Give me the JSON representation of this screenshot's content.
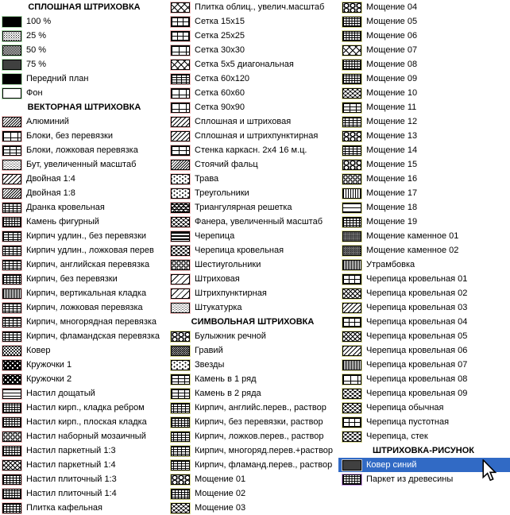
{
  "selection_color": "#316ac5",
  "category_colors": {
    "solid": "#b3e2b3",
    "vector": "#f6c0c0",
    "symbol": "#dede9a",
    "picture": "#cf9ef0"
  },
  "sections": {
    "solid": "СПЛОШНАЯ ШТРИХОВКА",
    "vector": "ВЕКТОРНАЯ ШТРИХОВКА",
    "symbol": "СИМВОЛЬНАЯ ШТРИХОВКА",
    "picture": "ШТРИХОВКА-РИСУНОК"
  },
  "selected_item": "Ковер синий",
  "columns": [
    {
      "rows": [
        {
          "type": "header",
          "label": "СПЛОШНАЯ ШТРИХОВКА"
        },
        {
          "type": "item",
          "label": "100 %",
          "pattern": "black",
          "category": "solid"
        },
        {
          "type": "item",
          "label": "25 %",
          "pattern": "stip25",
          "category": "solid"
        },
        {
          "type": "item",
          "label": "50 %",
          "pattern": "checker",
          "category": "solid"
        },
        {
          "type": "item",
          "label": "75 %",
          "pattern": "stip75",
          "category": "solid"
        },
        {
          "type": "item",
          "label": "Передний план",
          "pattern": "black",
          "category": "solid"
        },
        {
          "type": "item",
          "label": "Фон",
          "pattern": "white",
          "category": "solid"
        },
        {
          "type": "header",
          "label": "ВЕКТОРНАЯ ШТРИХОВКА"
        },
        {
          "type": "item",
          "label": "Алюминий",
          "pattern": "diag8",
          "category": "vector"
        },
        {
          "type": "item",
          "label": "Блоки, без перевязки",
          "pattern": "gridl",
          "category": "vector"
        },
        {
          "type": "item",
          "label": "Блоки, ложковая перевязка",
          "pattern": "brick",
          "category": "vector"
        },
        {
          "type": "item",
          "label": "Бут, увеличенный масштаб",
          "pattern": "speck",
          "category": "vector"
        },
        {
          "type": "item",
          "label": "Двойная 1:4",
          "pattern": "diag",
          "category": "vector"
        },
        {
          "type": "item",
          "label": "Двойная 1:8",
          "pattern": "diag8",
          "category": "vector"
        },
        {
          "type": "item",
          "label": "Дранка кровельная",
          "pattern": "brickd",
          "category": "vector"
        },
        {
          "type": "item",
          "label": "Камень фигурный",
          "pattern": "maze",
          "category": "vector"
        },
        {
          "type": "item",
          "label": "Кирпич удлин., без перевязки",
          "pattern": "gridr",
          "category": "vector"
        },
        {
          "type": "item",
          "label": "Кирпич удлин., ложковая перев",
          "pattern": "brickd",
          "category": "vector"
        },
        {
          "type": "item",
          "label": "Кирпич, английская перевязка",
          "pattern": "brickd",
          "category": "vector"
        },
        {
          "type": "item",
          "label": "Кирпич, без перевязки",
          "pattern": "gridd",
          "category": "vector"
        },
        {
          "type": "item",
          "label": "Кирпич, вертикальная кладка",
          "pattern": "vlined",
          "category": "vector"
        },
        {
          "type": "item",
          "label": "Кирпич, ложковая перевязка",
          "pattern": "brickd",
          "category": "vector"
        },
        {
          "type": "item",
          "label": "Кирпич, многорядная перевязка",
          "pattern": "brickd",
          "category": "vector"
        },
        {
          "type": "item",
          "label": "Кирпич, фламандская перевязка",
          "pattern": "brickd",
          "category": "vector"
        },
        {
          "type": "item",
          "label": "Ковер",
          "pattern": "dots",
          "category": "vector"
        },
        {
          "type": "item",
          "label": "Кружочки 1",
          "pattern": "circ",
          "category": "vector"
        },
        {
          "type": "item",
          "label": "Кружочки 2",
          "pattern": "circ",
          "category": "vector"
        },
        {
          "type": "item",
          "label": "Настил дощатый",
          "pattern": "hline",
          "category": "vector"
        },
        {
          "type": "item",
          "label": "Настил кирп., кладка ребром",
          "pattern": "maze",
          "category": "vector"
        },
        {
          "type": "item",
          "label": "Настил кирп., плоская кладка",
          "pattern": "maze",
          "category": "vector"
        },
        {
          "type": "item",
          "label": "Настил наборный мозаичный",
          "pattern": "circo",
          "category": "vector"
        },
        {
          "type": "item",
          "label": "Настил паркетный 1:3",
          "pattern": "maze",
          "category": "vector"
        },
        {
          "type": "item",
          "label": "Настил паркетный 1:4",
          "pattern": "cross",
          "category": "vector"
        },
        {
          "type": "item",
          "label": "Настил плиточный 1:3",
          "pattern": "gridd",
          "category": "vector"
        },
        {
          "type": "item",
          "label": "Настил плиточный 1:4",
          "pattern": "maze",
          "category": "vector"
        },
        {
          "type": "item",
          "label": "Плитка кафельная",
          "pattern": "gridd",
          "category": "vector"
        }
      ]
    },
    {
      "rows": [
        {
          "type": "item",
          "label": "Плитка облиц., увелич.масштаб",
          "pattern": "crossl",
          "category": "vector"
        },
        {
          "type": "item",
          "label": "Сетка 15x15",
          "pattern": "grid",
          "category": "vector"
        },
        {
          "type": "item",
          "label": "Сетка 25x25",
          "pattern": "grid",
          "category": "vector"
        },
        {
          "type": "item",
          "label": "Сетка 30x30",
          "pattern": "gridl",
          "category": "vector"
        },
        {
          "type": "item",
          "label": "Сетка 5x5 диагональная",
          "pattern": "crossl",
          "category": "vector"
        },
        {
          "type": "item",
          "label": "Сетка 60x120",
          "pattern": "gridr",
          "category": "vector"
        },
        {
          "type": "item",
          "label": "Сетка 60x60",
          "pattern": "gridl",
          "category": "vector"
        },
        {
          "type": "item",
          "label": "Сетка 90x90",
          "pattern": "gridl",
          "category": "vector"
        },
        {
          "type": "item",
          "label": "Сплошная и штриховая",
          "pattern": "diag",
          "category": "vector"
        },
        {
          "type": "item",
          "label": "Сплошная и штрихпунктирная",
          "pattern": "diag",
          "category": "vector"
        },
        {
          "type": "item",
          "label": "Стенка каркасн. 2x4 16 м.ц.",
          "pattern": "stud",
          "category": "vector"
        },
        {
          "type": "item",
          "label": "Стоячий фальц",
          "pattern": "diag8",
          "category": "vector"
        },
        {
          "type": "item",
          "label": "Трава",
          "pattern": "scatter",
          "category": "vector"
        },
        {
          "type": "item",
          "label": "Треугольники",
          "pattern": "scatter",
          "category": "vector"
        },
        {
          "type": "item",
          "label": "Триангулярная решетка",
          "pattern": "tri",
          "category": "vector"
        },
        {
          "type": "item",
          "label": "Фанера, увеличенный масштаб",
          "pattern": "scale",
          "category": "vector"
        },
        {
          "type": "item",
          "label": "Черепица",
          "pattern": "hbar",
          "category": "vector"
        },
        {
          "type": "item",
          "label": "Черепица кровельная",
          "pattern": "scale",
          "category": "vector"
        },
        {
          "type": "item",
          "label": "Шестиугольники",
          "pattern": "circo",
          "category": "vector"
        },
        {
          "type": "item",
          "label": "Штриховая",
          "pattern": "diagl",
          "category": "vector"
        },
        {
          "type": "item",
          "label": "Штрихпунктирная",
          "pattern": "diagl",
          "category": "vector"
        },
        {
          "type": "item",
          "label": "Штукатурка",
          "pattern": "speck",
          "category": "vector"
        },
        {
          "type": "header",
          "label": "СИМВОЛЬНАЯ ШТРИХОВКА"
        },
        {
          "type": "item",
          "label": "Булыжник речной",
          "pattern": "cobble",
          "category": "symbol"
        },
        {
          "type": "item",
          "label": "Гравий",
          "pattern": "speckd",
          "category": "symbol"
        },
        {
          "type": "item",
          "label": "Звезды",
          "pattern": "scatter",
          "category": "symbol"
        },
        {
          "type": "item",
          "label": "Камень в 1 ряд",
          "pattern": "brick",
          "category": "symbol"
        },
        {
          "type": "item",
          "label": "Камень в 2 ряда",
          "pattern": "brick",
          "category": "symbol"
        },
        {
          "type": "item",
          "label": "Кирпич, английс.перев., раствор",
          "pattern": "brickd",
          "category": "symbol"
        },
        {
          "type": "item",
          "label": "Кирпич, без перевязки, раствор",
          "pattern": "gridd",
          "category": "symbol"
        },
        {
          "type": "item",
          "label": "Кирпич, ложков.перев., раствор",
          "pattern": "brickd",
          "category": "symbol"
        },
        {
          "type": "item",
          "label": "Кирпич, многоряд.перев.+раствор",
          "pattern": "brickd",
          "category": "symbol"
        },
        {
          "type": "item",
          "label": "Кирпич, фламанд.перев., раствор",
          "pattern": "brickd",
          "category": "symbol"
        },
        {
          "type": "item",
          "label": "Мощение 01",
          "pattern": "cobble",
          "category": "symbol"
        },
        {
          "type": "item",
          "label": "Мощение 02",
          "pattern": "gridd",
          "category": "symbol"
        },
        {
          "type": "item",
          "label": "Мощение 03",
          "pattern": "scale",
          "category": "symbol"
        }
      ]
    },
    {
      "rows": [
        {
          "type": "item",
          "label": "Мощение 04",
          "pattern": "cobble",
          "category": "symbol"
        },
        {
          "type": "item",
          "label": "Мощение 05",
          "pattern": "maze",
          "category": "symbol"
        },
        {
          "type": "item",
          "label": "Мощение 06",
          "pattern": "maze",
          "category": "symbol"
        },
        {
          "type": "item",
          "label": "Мощение 07",
          "pattern": "crossl",
          "category": "symbol"
        },
        {
          "type": "item",
          "label": "Мощение 08",
          "pattern": "maze",
          "category": "symbol"
        },
        {
          "type": "item",
          "label": "Мощение 09",
          "pattern": "maze",
          "category": "symbol"
        },
        {
          "type": "item",
          "label": "Мощение 10",
          "pattern": "scale",
          "category": "symbol"
        },
        {
          "type": "item",
          "label": "Мощение 11",
          "pattern": "brick",
          "category": "symbol"
        },
        {
          "type": "item",
          "label": "Мощение 12",
          "pattern": "brickd",
          "category": "symbol"
        },
        {
          "type": "item",
          "label": "Мощение 13",
          "pattern": "cobble",
          "category": "symbol"
        },
        {
          "type": "item",
          "label": "Мощение 14",
          "pattern": "brickd",
          "category": "symbol"
        },
        {
          "type": "item",
          "label": "Мощение 15",
          "pattern": "cobble",
          "category": "symbol"
        },
        {
          "type": "item",
          "label": "Мощение 16",
          "pattern": "circo",
          "category": "symbol"
        },
        {
          "type": "item",
          "label": "Мощение 17",
          "pattern": "vline",
          "category": "symbol"
        },
        {
          "type": "item",
          "label": "Мощение 18",
          "pattern": "hlinel",
          "category": "symbol"
        },
        {
          "type": "item",
          "label": "Мощение 19",
          "pattern": "gridd",
          "category": "symbol"
        },
        {
          "type": "item",
          "label": "Мощение каменное 01",
          "pattern": "speckd",
          "category": "symbol"
        },
        {
          "type": "item",
          "label": "Мощение каменное 02",
          "pattern": "speckd",
          "category": "symbol"
        },
        {
          "type": "item",
          "label": "Утрамбовка",
          "pattern": "vlined",
          "category": "symbol"
        },
        {
          "type": "item",
          "label": "Черепица кровельная 01",
          "pattern": "grid",
          "category": "symbol"
        },
        {
          "type": "item",
          "label": "Черепица кровельная 02",
          "pattern": "cross",
          "category": "symbol"
        },
        {
          "type": "item",
          "label": "Черепица кровельная 03",
          "pattern": "diag",
          "category": "symbol"
        },
        {
          "type": "item",
          "label": "Черепица кровельная 04",
          "pattern": "grid",
          "category": "symbol"
        },
        {
          "type": "item",
          "label": "Черепица кровельная 05",
          "pattern": "cross",
          "category": "symbol"
        },
        {
          "type": "item",
          "label": "Черепица кровельная 06",
          "pattern": "diag",
          "category": "symbol"
        },
        {
          "type": "item",
          "label": "Черепица кровельная 07",
          "pattern": "vlined",
          "category": "symbol"
        },
        {
          "type": "item",
          "label": "Черепица кровельная 08",
          "pattern": "gridl",
          "category": "symbol"
        },
        {
          "type": "item",
          "label": "Черепица кровельная 09",
          "pattern": "scale",
          "category": "symbol"
        },
        {
          "type": "item",
          "label": "Черепица обычная",
          "pattern": "scale",
          "category": "symbol"
        },
        {
          "type": "item",
          "label": "Черепица пустотная",
          "pattern": "grid",
          "category": "symbol"
        },
        {
          "type": "item",
          "label": "Черепица, стек",
          "pattern": "scale",
          "category": "symbol"
        },
        {
          "type": "header",
          "label": "ШТРИХОВКА-РИСУНОК"
        },
        {
          "type": "item",
          "label": "Ковер синий",
          "pattern": "stip75",
          "category": "picture",
          "selected": true
        },
        {
          "type": "item",
          "label": "Паркет из древесины",
          "pattern": "maze",
          "category": "picture"
        }
      ]
    }
  ]
}
